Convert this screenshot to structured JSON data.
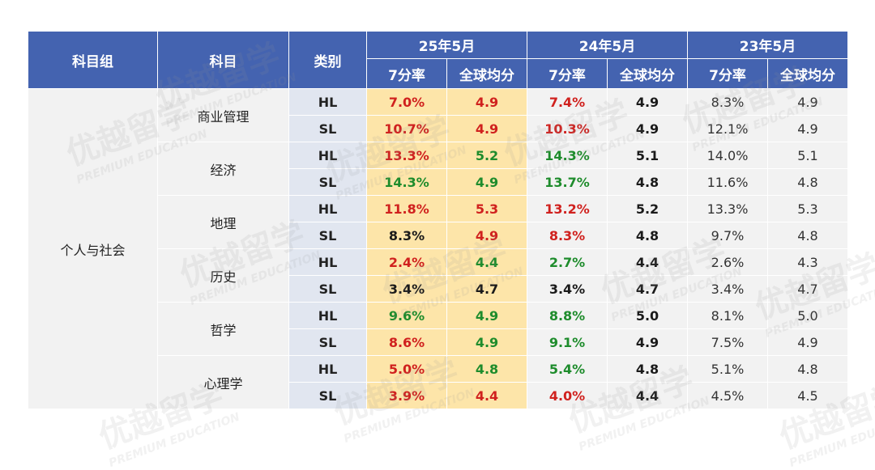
{
  "header": {
    "group_col": "科目组",
    "subject_col": "科目",
    "level_col": "类别",
    "years": [
      {
        "label": "25年5月",
        "rate_label": "7分率",
        "avg_label": "全球均分"
      },
      {
        "label": "24年5月",
        "rate_label": "7分率",
        "avg_label": "全球均分"
      },
      {
        "label": "23年5月",
        "rate_label": "7分率",
        "avg_label": "全球均分"
      }
    ]
  },
  "group": "个人与社会",
  "subjects": [
    {
      "name": "商业管理",
      "rows": [
        {
          "level": "HL",
          "cells": [
            {
              "v": "7.0%",
              "c": "red"
            },
            {
              "v": "4.9",
              "c": "red"
            },
            {
              "v": "7.4%",
              "c": "red"
            },
            {
              "v": "4.9",
              "c": "black"
            },
            {
              "v": "8.3%",
              "c": "gray"
            },
            {
              "v": "4.9",
              "c": "gray"
            }
          ]
        },
        {
          "level": "SL",
          "cells": [
            {
              "v": "10.7%",
              "c": "red"
            },
            {
              "v": "4.9",
              "c": "red"
            },
            {
              "v": "10.3%",
              "c": "red"
            },
            {
              "v": "4.9",
              "c": "black"
            },
            {
              "v": "12.1%",
              "c": "gray"
            },
            {
              "v": "4.9",
              "c": "gray"
            }
          ]
        }
      ]
    },
    {
      "name": "经济",
      "rows": [
        {
          "level": "HL",
          "cells": [
            {
              "v": "13.3%",
              "c": "red"
            },
            {
              "v": "5.2",
              "c": "green"
            },
            {
              "v": "14.3%",
              "c": "green"
            },
            {
              "v": "5.1",
              "c": "black"
            },
            {
              "v": "14.0%",
              "c": "gray"
            },
            {
              "v": "5.1",
              "c": "gray"
            }
          ]
        },
        {
          "level": "SL",
          "cells": [
            {
              "v": "14.3%",
              "c": "green"
            },
            {
              "v": "4.9",
              "c": "green"
            },
            {
              "v": "13.7%",
              "c": "green"
            },
            {
              "v": "4.8",
              "c": "black"
            },
            {
              "v": "11.6%",
              "c": "gray"
            },
            {
              "v": "4.8",
              "c": "gray"
            }
          ]
        }
      ]
    },
    {
      "name": "地理",
      "rows": [
        {
          "level": "HL",
          "cells": [
            {
              "v": "11.8%",
              "c": "red"
            },
            {
              "v": "5.3",
              "c": "red"
            },
            {
              "v": "13.2%",
              "c": "red"
            },
            {
              "v": "5.2",
              "c": "black"
            },
            {
              "v": "13.3%",
              "c": "gray"
            },
            {
              "v": "5.3",
              "c": "gray"
            }
          ]
        },
        {
          "level": "SL",
          "cells": [
            {
              "v": "8.3%",
              "c": "black"
            },
            {
              "v": "4.9",
              "c": "red"
            },
            {
              "v": "8.3%",
              "c": "red"
            },
            {
              "v": "4.8",
              "c": "black"
            },
            {
              "v": "9.7%",
              "c": "gray"
            },
            {
              "v": "4.8",
              "c": "gray"
            }
          ]
        }
      ]
    },
    {
      "name": "历史",
      "rows": [
        {
          "level": "HL",
          "cells": [
            {
              "v": "2.4%",
              "c": "red"
            },
            {
              "v": "4.4",
              "c": "green"
            },
            {
              "v": "2.7%",
              "c": "green"
            },
            {
              "v": "4.4",
              "c": "black"
            },
            {
              "v": "2.6%",
              "c": "gray"
            },
            {
              "v": "4.3",
              "c": "gray"
            }
          ]
        },
        {
          "level": "SL",
          "cells": [
            {
              "v": "3.4%",
              "c": "black"
            },
            {
              "v": "4.7",
              "c": "black"
            },
            {
              "v": "3.4%",
              "c": "black"
            },
            {
              "v": "4.7",
              "c": "black"
            },
            {
              "v": "3.4%",
              "c": "gray"
            },
            {
              "v": "4.7",
              "c": "gray"
            }
          ]
        }
      ]
    },
    {
      "name": "哲学",
      "rows": [
        {
          "level": "HL",
          "cells": [
            {
              "v": "9.6%",
              "c": "green"
            },
            {
              "v": "4.9",
              "c": "green"
            },
            {
              "v": "8.8%",
              "c": "green"
            },
            {
              "v": "5.0",
              "c": "black"
            },
            {
              "v": "8.1%",
              "c": "gray"
            },
            {
              "v": "5.0",
              "c": "gray"
            }
          ]
        },
        {
          "level": "SL",
          "cells": [
            {
              "v": "8.6%",
              "c": "red"
            },
            {
              "v": "4.9",
              "c": "green"
            },
            {
              "v": "9.1%",
              "c": "green"
            },
            {
              "v": "4.9",
              "c": "black"
            },
            {
              "v": "7.5%",
              "c": "gray"
            },
            {
              "v": "4.9",
              "c": "gray"
            }
          ]
        }
      ]
    },
    {
      "name": "心理学",
      "rows": [
        {
          "level": "HL",
          "cells": [
            {
              "v": "5.0%",
              "c": "red"
            },
            {
              "v": "4.8",
              "c": "green"
            },
            {
              "v": "5.4%",
              "c": "green"
            },
            {
              "v": "4.8",
              "c": "black"
            },
            {
              "v": "5.1%",
              "c": "gray"
            },
            {
              "v": "4.8",
              "c": "gray"
            }
          ]
        },
        {
          "level": "SL",
          "cells": [
            {
              "v": "3.9%",
              "c": "red"
            },
            {
              "v": "4.4",
              "c": "red"
            },
            {
              "v": "4.0%",
              "c": "red"
            },
            {
              "v": "4.4",
              "c": "black"
            },
            {
              "v": "4.5%",
              "c": "gray"
            },
            {
              "v": "4.5",
              "c": "gray"
            }
          ]
        }
      ]
    }
  ],
  "colors": {
    "header_bg": "#4463b0",
    "highlight_2025_bg": "#fde5a9",
    "level_bg": "#e1e6f0",
    "cell_bg": "#f2f2f2",
    "red": "#d0211e",
    "green": "#1e8c2c"
  },
  "watermark": {
    "brand": "优越留学",
    "tagline": "PREMIUM EDUCATION"
  }
}
